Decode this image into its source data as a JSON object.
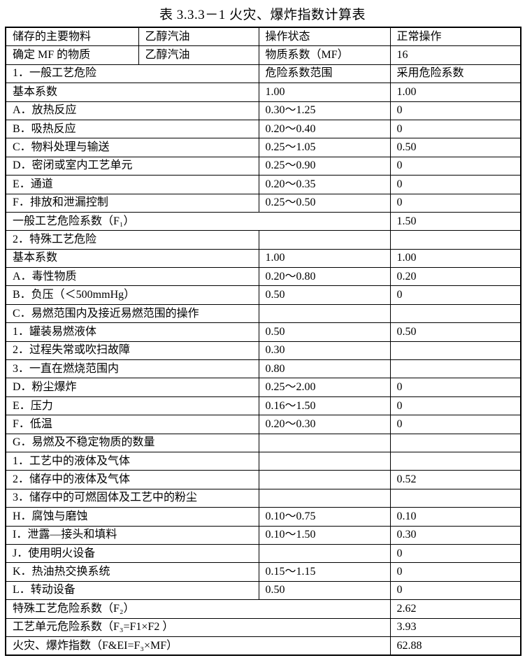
{
  "title": "表 3.3.3－1   火灾、爆炸指数计算表",
  "header_rows": [
    [
      "储存的主要物料",
      "乙醇汽油",
      "操作状态",
      "正常操作"
    ],
    [
      "确定 MF 的物质",
      "乙醇汽油",
      "物质系数（MF）",
      "16"
    ]
  ],
  "rows": [
    {
      "label": "1．一般工艺危险",
      "range": "危险系数范围",
      "value": "采用危险系数"
    },
    {
      "label": "基本系数",
      "range": "1.00",
      "value": "1.00"
    },
    {
      "label": "A．放热反应",
      "range": "0.30～1.25",
      "value": "0"
    },
    {
      "label": "B．吸热反应",
      "range": "0.20～0.40",
      "value": "0"
    },
    {
      "label": "C．物料处理与输送",
      "range": "0.25～1.05",
      "value": "0.50"
    },
    {
      "label": "D．密闭或室内工艺单元",
      "range": "0.25～0.90",
      "value": "0"
    },
    {
      "label": "E．通道",
      "range": "0.20～0.35",
      "value": "0"
    },
    {
      "label": "F．排放和泄漏控制",
      "range": "0.25～0.50",
      "value": "0"
    },
    {
      "label": "一般工艺危险系数（F₁）",
      "value": "1.50",
      "span": true
    },
    {
      "label": "2．特殊工艺危险",
      "range": "",
      "value": ""
    },
    {
      "label": "基本系数",
      "range": "1.00",
      "value": "1.00"
    },
    {
      "label": "A．毒性物质",
      "range": "0.20～0.80",
      "value": "0.20"
    },
    {
      "label": "B．负压（＜500mmHg）",
      "range": "0.50",
      "value": "0"
    },
    {
      "label": "C．易燃范围内及接近易燃范围的操作",
      "range": "",
      "value": ""
    },
    {
      "label": "1．罐装易燃液体",
      "range": "0.50",
      "value": "0.50"
    },
    {
      "label": "2．过程失常或吹扫故障",
      "range": "0.30",
      "value": ""
    },
    {
      "label": "3．一直在燃烧范围内",
      "range": "0.80",
      "value": ""
    },
    {
      "label": "D．粉尘爆炸",
      "range": "0.25～2.00",
      "value": "0"
    },
    {
      "label": "E．压力",
      "range": "0.16～1.50",
      "value": "0"
    },
    {
      "label": "F．低温",
      "range": "0.20～0.30",
      "value": "0"
    },
    {
      "label": "G．易燃及不稳定物质的数量",
      "range": "",
      "value": ""
    },
    {
      "label": "1．工艺中的液体及气体",
      "range": "",
      "value": ""
    },
    {
      "label": "2．储存中的液体及气体",
      "range": "",
      "value": "0.52"
    },
    {
      "label": "3．储存中的可燃固体及工艺中的粉尘",
      "range": "",
      "value": ""
    },
    {
      "label": "H．腐蚀与磨蚀",
      "range": "0.10～0.75",
      "value": "0.10"
    },
    {
      "label": "I．泄露—接头和填料",
      "range": "0.10～1.50",
      "value": "0.30"
    },
    {
      "label": "J．使用明火设备",
      "range": "",
      "value": "0"
    },
    {
      "label": "K．热油热交换系统",
      "range": "0.15～1.15",
      "value": "0"
    },
    {
      "label": "L．转动设备",
      "range": "0.50",
      "value": "0"
    },
    {
      "label": "特殊工艺危险系数（F₂）",
      "value": "2.62",
      "span": true
    },
    {
      "label": "工艺单元危险系数（F₃=F1×F2 ）",
      "value": "3.93",
      "span": true
    },
    {
      "label": "火灾、爆炸指数（F&EI=F₃×MF）",
      "value": "62.88",
      "span": true
    }
  ]
}
